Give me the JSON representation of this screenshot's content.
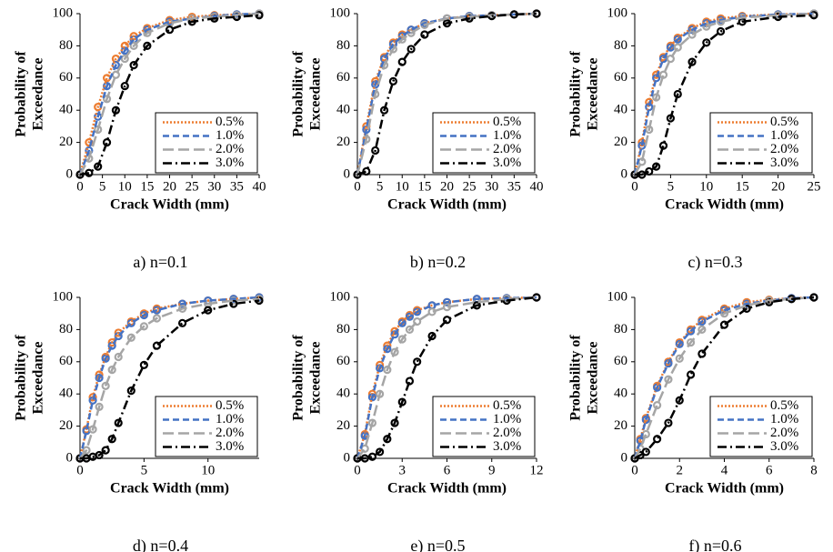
{
  "chart_data": [
    {
      "type": "line",
      "caption": "a) n=0.1",
      "xlabel": "Crack Width (mm)",
      "ylabel": [
        "Probability of",
        "Exceedance"
      ],
      "x": [
        0,
        2,
        4,
        6,
        8,
        10,
        12,
        15,
        20,
        25,
        30,
        35,
        40
      ],
      "xlim": [
        0,
        40
      ],
      "xticks": [
        0,
        5,
        10,
        15,
        20,
        25,
        30,
        35,
        40
      ],
      "ylim": [
        0,
        100
      ],
      "yticks": [
        0,
        20,
        40,
        60,
        80,
        100
      ],
      "legend": "lower right",
      "series": [
        {
          "name": "0.5%",
          "color": "#ed7d31",
          "linestyle": "dotted",
          "values": [
            0,
            20,
            42,
            60,
            72,
            80,
            86,
            91,
            96,
            98,
            99,
            99.5,
            100
          ]
        },
        {
          "name": "1.0%",
          "color": "#4472c4",
          "linestyle": "dashed",
          "values": [
            0,
            15,
            36,
            55,
            68,
            77,
            84,
            90,
            95,
            97,
            98.5,
            99.5,
            100
          ]
        },
        {
          "name": "2.0%",
          "color": "#a5a5a5",
          "linestyle": "longdash",
          "values": [
            0,
            10,
            28,
            47,
            62,
            72,
            80,
            88,
            94,
            97,
            98,
            99,
            100
          ]
        },
        {
          "name": "3.0%",
          "color": "#000000",
          "linestyle": "dashdot",
          "values": [
            0,
            1,
            5,
            20,
            40,
            55,
            68,
            80,
            90,
            95,
            97,
            98,
            99
          ]
        }
      ]
    },
    {
      "type": "line",
      "caption": "b) n=0.2",
      "xlabel": "Crack Width (mm)",
      "ylabel": [
        "Probability of",
        "Exceedance"
      ],
      "x": [
        0,
        2,
        4,
        6,
        8,
        10,
        12,
        15,
        20,
        25,
        30,
        35,
        40
      ],
      "xlim": [
        0,
        40
      ],
      "xticks": [
        0,
        5,
        10,
        15,
        20,
        25,
        30,
        35,
        40
      ],
      "ylim": [
        0,
        100
      ],
      "yticks": [
        0,
        20,
        40,
        60,
        80,
        100
      ],
      "legend": "lower right",
      "series": [
        {
          "name": "0.5%",
          "color": "#ed7d31",
          "linestyle": "dotted",
          "values": [
            0,
            30,
            58,
            73,
            82,
            87,
            90,
            94,
            97,
            98.5,
            99,
            99.5,
            100
          ]
        },
        {
          "name": "1.0%",
          "color": "#4472c4",
          "linestyle": "dashed",
          "values": [
            0,
            28,
            56,
            72,
            81,
            86,
            90,
            94,
            97,
            98.5,
            99,
            99.5,
            100
          ]
        },
        {
          "name": "2.0%",
          "color": "#a5a5a5",
          "linestyle": "longdash",
          "values": [
            0,
            22,
            50,
            68,
            78,
            84,
            88,
            93,
            97,
            98,
            99,
            99.5,
            100
          ]
        },
        {
          "name": "3.0%",
          "color": "#000000",
          "linestyle": "dashdot",
          "values": [
            0,
            2,
            15,
            40,
            58,
            70,
            78,
            87,
            94,
            97,
            98.5,
            99.5,
            100
          ]
        }
      ]
    },
    {
      "type": "line",
      "caption": "c) n=0.3",
      "xlabel": "Crack Width (mm)",
      "ylabel": [
        "Probability of",
        "Exceedance"
      ],
      "x": [
        0,
        1,
        2,
        3,
        4,
        5,
        6,
        8,
        10,
        12,
        15,
        20,
        25
      ],
      "xlim": [
        0,
        25
      ],
      "xticks": [
        0,
        5,
        10,
        15,
        20,
        25
      ],
      "ylim": [
        0,
        100
      ],
      "yticks": [
        0,
        20,
        40,
        60,
        80,
        100
      ],
      "legend": "lower right",
      "series": [
        {
          "name": "0.5%",
          "color": "#ed7d31",
          "linestyle": "dotted",
          "values": [
            0,
            20,
            45,
            62,
            73,
            80,
            85,
            91,
            95,
            97,
            98.5,
            99.5,
            100
          ]
        },
        {
          "name": "1.0%",
          "color": "#4472c4",
          "linestyle": "dashed",
          "values": [
            0,
            18,
            42,
            60,
            72,
            79,
            84,
            90,
            94,
            96,
            98,
            99.5,
            100
          ]
        },
        {
          "name": "2.0%",
          "color": "#a5a5a5",
          "linestyle": "longdash",
          "values": [
            0,
            8,
            28,
            48,
            62,
            72,
            79,
            87,
            92,
            95,
            97.5,
            99,
            100
          ]
        },
        {
          "name": "3.0%",
          "color": "#000000",
          "linestyle": "dashdot",
          "values": [
            0,
            0,
            2,
            5,
            18,
            35,
            50,
            70,
            82,
            89,
            95,
            98,
            99
          ]
        }
      ]
    },
    {
      "type": "line",
      "caption": "d) n=0.4",
      "xlabel": "Crack Width (mm)",
      "ylabel": [
        "Probability of",
        "Exceedance"
      ],
      "x": [
        0,
        0.5,
        1,
        1.5,
        2,
        2.5,
        3,
        4,
        5,
        6,
        8,
        10,
        12,
        14
      ],
      "xlim": [
        0,
        14
      ],
      "xticks": [
        0,
        5,
        10
      ],
      "ylim": [
        0,
        100
      ],
      "yticks": [
        0,
        20,
        40,
        60,
        80,
        100
      ],
      "legend": "lower right",
      "series": [
        {
          "name": "0.5%",
          "color": "#ed7d31",
          "linestyle": "dotted",
          "values": [
            0,
            18,
            38,
            52,
            63,
            72,
            78,
            85,
            90,
            93,
            96,
            98,
            99,
            100
          ]
        },
        {
          "name": "1.0%",
          "color": "#4472c4",
          "linestyle": "dashed",
          "values": [
            0,
            17,
            36,
            50,
            62,
            70,
            76,
            84,
            89,
            92,
            96,
            98,
            99,
            100
          ]
        },
        {
          "name": "2.0%",
          "color": "#a5a5a5",
          "linestyle": "longdash",
          "values": [
            0,
            5,
            18,
            32,
            45,
            55,
            63,
            75,
            82,
            87,
            93,
            96,
            98,
            99
          ]
        },
        {
          "name": "3.0%",
          "color": "#000000",
          "linestyle": "dashdot",
          "values": [
            0,
            0,
            1,
            2,
            5,
            12,
            22,
            42,
            58,
            70,
            84,
            92,
            96,
            98
          ]
        }
      ]
    },
    {
      "type": "line",
      "caption": "e) n=0.5",
      "xlabel": "Crack Width (mm)",
      "ylabel": [
        "Probability of",
        "Exceedance"
      ],
      "x": [
        0,
        0.5,
        1,
        1.5,
        2,
        2.5,
        3,
        3.5,
        4,
        5,
        6,
        8,
        10,
        12
      ],
      "xlim": [
        0,
        12
      ],
      "xticks": [
        0,
        3,
        6,
        9,
        12
      ],
      "ylim": [
        0,
        100
      ],
      "yticks": [
        0,
        20,
        40,
        60,
        80,
        100
      ],
      "legend": "lower right",
      "series": [
        {
          "name": "0.5%",
          "color": "#ed7d31",
          "linestyle": "dotted",
          "values": [
            0,
            15,
            40,
            58,
            70,
            79,
            85,
            89,
            92,
            95,
            97,
            99,
            99.5,
            100
          ]
        },
        {
          "name": "1.0%",
          "color": "#4472c4",
          "linestyle": "dashed",
          "values": [
            0,
            14,
            38,
            56,
            68,
            77,
            84,
            88,
            91,
            95,
            97,
            99,
            99.5,
            100
          ]
        },
        {
          "name": "2.0%",
          "color": "#a5a5a5",
          "linestyle": "longdash",
          "values": [
            0,
            6,
            22,
            40,
            55,
            66,
            74,
            80,
            85,
            91,
            94,
            97,
            99,
            100
          ]
        },
        {
          "name": "3.0%",
          "color": "#000000",
          "linestyle": "dashdot",
          "values": [
            0,
            0,
            1,
            4,
            12,
            22,
            35,
            48,
            60,
            76,
            86,
            95,
            98,
            100
          ]
        }
      ]
    },
    {
      "type": "line",
      "caption": "f) n=0.6",
      "xlabel": "Crack Width (mm)",
      "ylabel": [
        "Probability of",
        "Exceedance"
      ],
      "x": [
        0,
        0.25,
        0.5,
        1,
        1.5,
        2,
        2.5,
        3,
        4,
        5,
        6,
        7,
        8
      ],
      "xlim": [
        0,
        8
      ],
      "xticks": [
        0,
        2,
        4,
        6,
        8
      ],
      "ylim": [
        0,
        100
      ],
      "yticks": [
        0,
        20,
        40,
        60,
        80,
        100
      ],
      "legend": "lower right",
      "series": [
        {
          "name": "0.5%",
          "color": "#ed7d31",
          "linestyle": "dotted",
          "values": [
            0,
            12,
            25,
            45,
            60,
            72,
            80,
            86,
            93,
            97,
            98.5,
            99.5,
            100
          ]
        },
        {
          "name": "1.0%",
          "color": "#4472c4",
          "linestyle": "dashed",
          "values": [
            0,
            11,
            24,
            44,
            59,
            71,
            79,
            85,
            92,
            96,
            98,
            99.5,
            100
          ]
        },
        {
          "name": "2.0%",
          "color": "#a5a5a5",
          "linestyle": "longdash",
          "values": [
            0,
            6,
            15,
            33,
            49,
            62,
            72,
            80,
            90,
            95,
            98,
            99,
            100
          ]
        },
        {
          "name": "3.0%",
          "color": "#000000",
          "linestyle": "dashdot",
          "values": [
            0,
            2,
            4,
            12,
            22,
            36,
            52,
            65,
            83,
            93,
            97,
            99,
            100
          ]
        }
      ]
    }
  ]
}
